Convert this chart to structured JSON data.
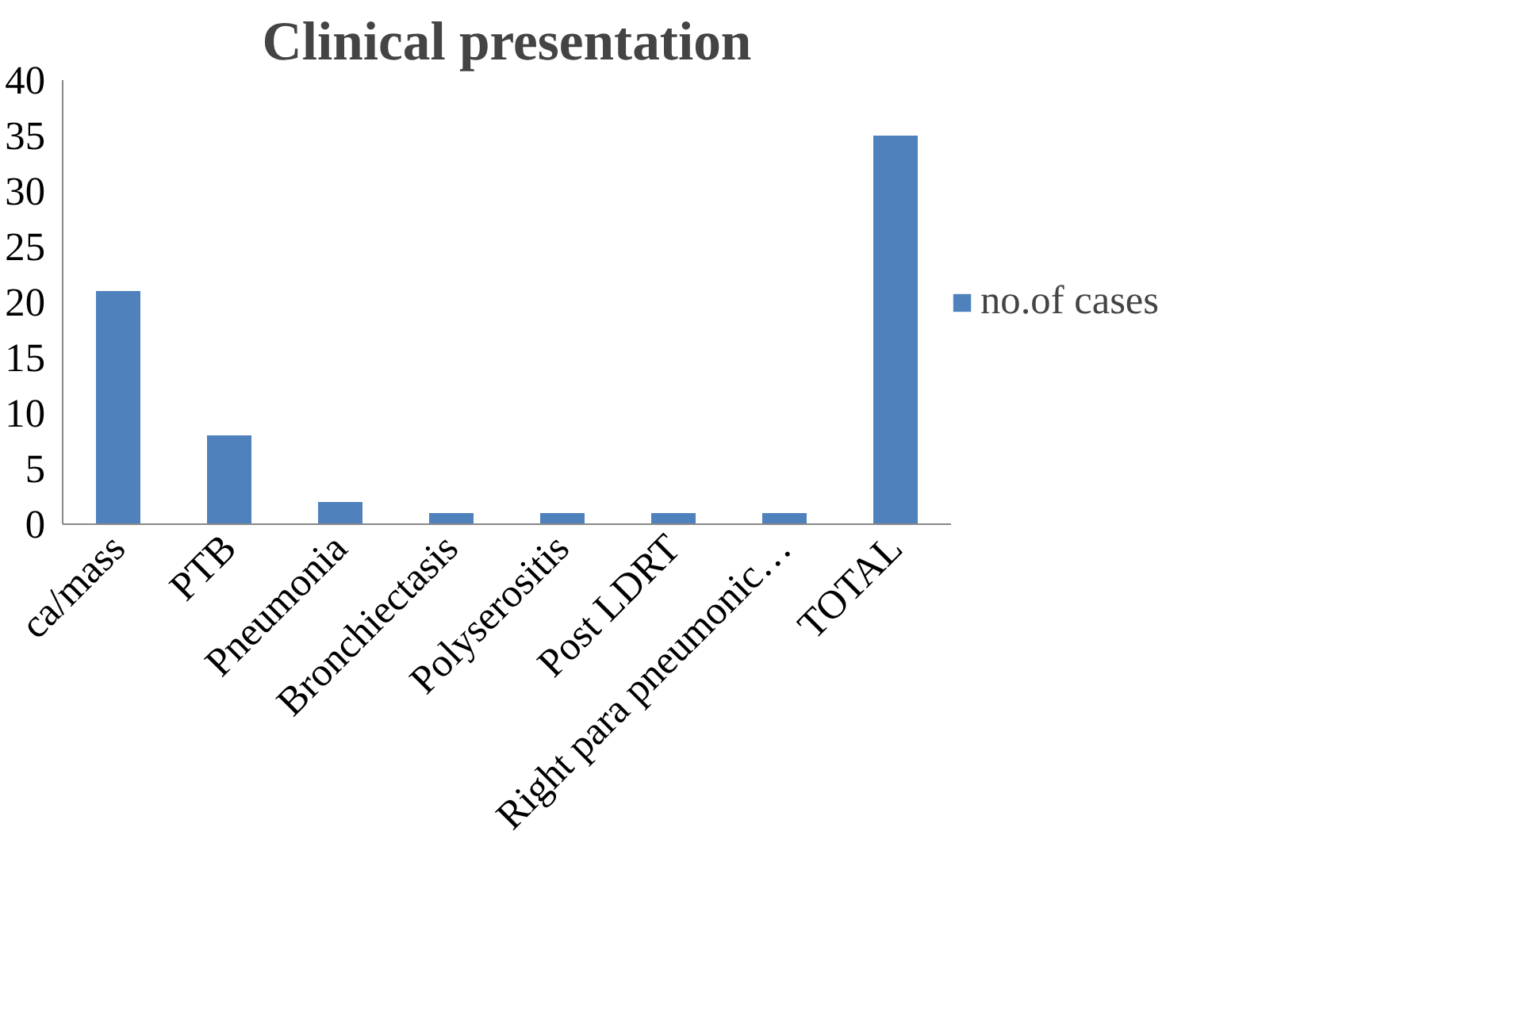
{
  "chart_data": {
    "type": "bar",
    "title": "Clinical presentation",
    "categories": [
      "ca/mass",
      "PTB",
      "Pneumonia",
      "Bronchiectasis",
      "Polyserositis",
      "Post LDRT",
      "Right para pneumonic…",
      "TOTAL"
    ],
    "series": [
      {
        "name": "no.of cases",
        "color": "#4f81bd",
        "values": [
          21,
          8,
          2,
          1,
          1,
          1,
          1,
          35
        ]
      }
    ],
    "ylim": [
      0,
      40
    ],
    "yticks": [
      0,
      5,
      10,
      15,
      20,
      25,
      30,
      35,
      40
    ],
    "grid": false,
    "legend": "right"
  }
}
